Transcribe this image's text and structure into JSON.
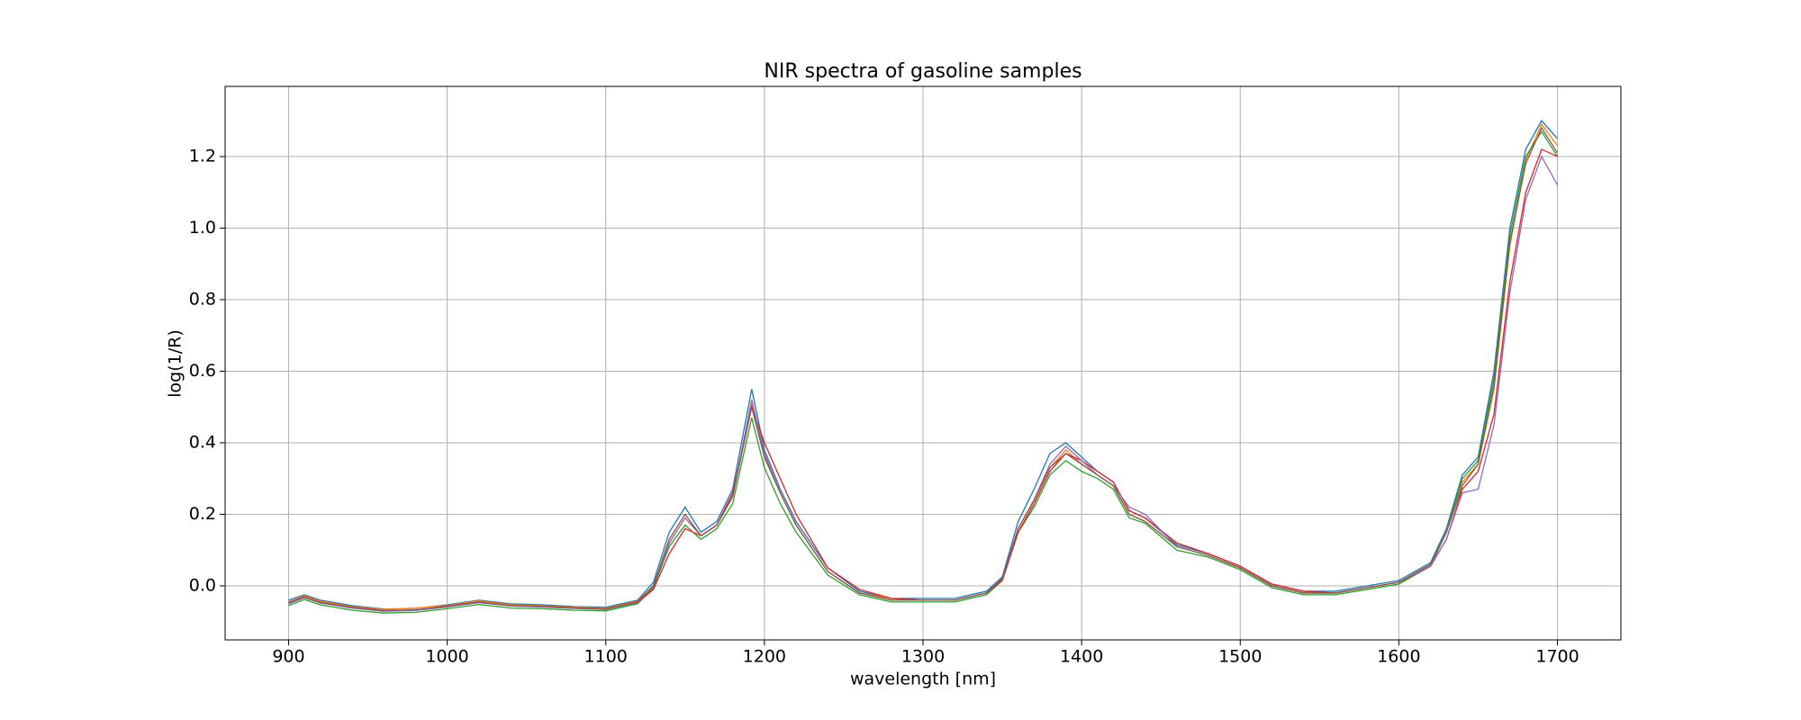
{
  "chart_data": {
    "type": "line",
    "title": "NIR spectra of gasoline samples",
    "xlabel": "wavelength [nm]",
    "ylabel": "log(1/R)",
    "x": [
      900,
      910,
      920,
      940,
      960,
      980,
      1000,
      1020,
      1040,
      1060,
      1080,
      1100,
      1120,
      1130,
      1140,
      1150,
      1160,
      1170,
      1180,
      1192,
      1200,
      1210,
      1220,
      1240,
      1260,
      1280,
      1300,
      1320,
      1340,
      1350,
      1360,
      1370,
      1380,
      1390,
      1400,
      1410,
      1420,
      1430,
      1440,
      1460,
      1480,
      1500,
      1520,
      1540,
      1560,
      1580,
      1600,
      1620,
      1630,
      1640,
      1650,
      1660,
      1670,
      1680,
      1690,
      1700
    ],
    "series": [
      {
        "color": "#1f77b4",
        "values": [
          -0.04,
          -0.025,
          -0.04,
          -0.055,
          -0.065,
          -0.063,
          -0.053,
          -0.04,
          -0.05,
          -0.053,
          -0.058,
          -0.06,
          -0.04,
          0.01,
          0.15,
          0.22,
          0.15,
          0.18,
          0.27,
          0.55,
          0.38,
          0.27,
          0.18,
          0.05,
          -0.015,
          -0.035,
          -0.035,
          -0.035,
          -0.015,
          0.025,
          0.18,
          0.27,
          0.37,
          0.4,
          0.36,
          0.32,
          0.29,
          0.21,
          0.19,
          0.115,
          0.09,
          0.055,
          0.005,
          -0.015,
          -0.015,
          0,
          0.015,
          0.065,
          0.16,
          0.31,
          0.36,
          0.6,
          1.0,
          1.22,
          1.3,
          1.25
        ]
      },
      {
        "color": "#ff7f0e",
        "values": [
          -0.045,
          -0.028,
          -0.043,
          -0.058,
          -0.066,
          -0.062,
          -0.055,
          -0.042,
          -0.053,
          -0.056,
          -0.06,
          -0.063,
          -0.043,
          0.0,
          0.12,
          0.19,
          0.14,
          0.17,
          0.25,
          0.51,
          0.36,
          0.26,
          0.17,
          0.04,
          -0.02,
          -0.035,
          -0.04,
          -0.04,
          -0.02,
          0.02,
          0.16,
          0.24,
          0.33,
          0.38,
          0.34,
          0.31,
          0.28,
          0.2,
          0.18,
          0.11,
          0.085,
          0.05,
          0.0,
          -0.02,
          -0.02,
          -0.005,
          0.01,
          0.06,
          0.15,
          0.29,
          0.34,
          0.55,
          0.95,
          1.19,
          1.29,
          1.23
        ]
      },
      {
        "color": "#2ca02c",
        "values": [
          -0.055,
          -0.038,
          -0.053,
          -0.068,
          -0.076,
          -0.074,
          -0.064,
          -0.052,
          -0.062,
          -0.064,
          -0.068,
          -0.07,
          -0.05,
          -0.005,
          0.11,
          0.17,
          0.13,
          0.16,
          0.23,
          0.47,
          0.33,
          0.23,
          0.15,
          0.03,
          -0.025,
          -0.045,
          -0.045,
          -0.045,
          -0.025,
          0.015,
          0.15,
          0.22,
          0.31,
          0.35,
          0.32,
          0.3,
          0.27,
          0.19,
          0.175,
          0.1,
          0.08,
          0.045,
          -0.005,
          -0.025,
          -0.025,
          -0.01,
          0.005,
          0.055,
          0.15,
          0.3,
          0.35,
          0.58,
          0.98,
          1.2,
          1.27,
          1.2
        ]
      },
      {
        "color": "#d62728",
        "values": [
          -0.048,
          -0.032,
          -0.047,
          -0.062,
          -0.07,
          -0.068,
          -0.058,
          -0.046,
          -0.056,
          -0.058,
          -0.062,
          -0.065,
          -0.047,
          -0.01,
          0.09,
          0.16,
          0.14,
          0.17,
          0.26,
          0.5,
          0.4,
          0.3,
          0.2,
          0.05,
          -0.01,
          -0.035,
          -0.04,
          -0.04,
          -0.02,
          0.015,
          0.15,
          0.23,
          0.32,
          0.37,
          0.35,
          0.32,
          0.29,
          0.21,
          0.19,
          0.12,
          0.09,
          0.055,
          0.005,
          -0.015,
          -0.02,
          -0.005,
          0.01,
          0.055,
          0.13,
          0.27,
          0.32,
          0.48,
          0.85,
          1.1,
          1.22,
          1.2
        ]
      },
      {
        "color": "#9467bd",
        "values": [
          -0.05,
          -0.033,
          -0.048,
          -0.062,
          -0.071,
          -0.069,
          -0.059,
          -0.047,
          -0.056,
          -0.059,
          -0.063,
          -0.066,
          -0.046,
          0.0,
          0.12,
          0.19,
          0.14,
          0.17,
          0.25,
          0.52,
          0.37,
          0.26,
          0.17,
          0.04,
          -0.02,
          -0.04,
          -0.04,
          -0.04,
          -0.02,
          0.02,
          0.16,
          0.24,
          0.34,
          0.39,
          0.35,
          0.31,
          0.28,
          0.22,
          0.2,
          0.11,
          0.085,
          0.05,
          0.0,
          -0.02,
          -0.02,
          -0.005,
          0.01,
          0.055,
          0.13,
          0.26,
          0.27,
          0.45,
          0.82,
          1.08,
          1.2,
          1.12
        ]
      },
      {
        "color": "#8c564b",
        "values": [
          -0.046,
          -0.031,
          -0.046,
          -0.06,
          -0.069,
          -0.067,
          -0.057,
          -0.045,
          -0.055,
          -0.058,
          -0.062,
          -0.065,
          -0.045,
          0.0,
          0.13,
          0.2,
          0.14,
          0.17,
          0.25,
          0.5,
          0.36,
          0.26,
          0.17,
          0.04,
          -0.02,
          -0.04,
          -0.04,
          -0.04,
          -0.02,
          0.02,
          0.16,
          0.24,
          0.33,
          0.37,
          0.34,
          0.31,
          0.28,
          0.2,
          0.18,
          0.11,
          0.085,
          0.05,
          0.0,
          -0.02,
          -0.02,
          -0.005,
          0.01,
          0.06,
          0.15,
          0.28,
          0.34,
          0.56,
          0.96,
          1.18,
          1.28,
          1.21
        ]
      }
    ],
    "xlim": [
      860,
      1740
    ],
    "ylim": [
      -0.151,
      1.396
    ],
    "xticks": [
      900,
      1000,
      1100,
      1200,
      1300,
      1400,
      1500,
      1600,
      1700
    ],
    "yticks": [
      {
        "value": 0,
        "label": "0.0"
      },
      0.2,
      0.4,
      0.6,
      0.8,
      {
        "value": 1,
        "label": "1.0"
      },
      1.2
    ],
    "grid": true
  }
}
